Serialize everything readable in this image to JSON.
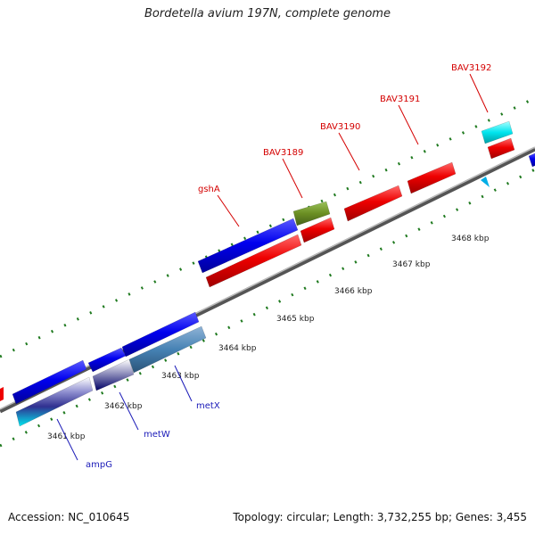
{
  "title": "Bordetella avium 197N, complete genome",
  "footer": {
    "accession": "Accession: NC_010645",
    "summary": "Topology: circular; Length: 3,732,255 bp; Genes: 3,455"
  },
  "scale_labels": [
    "3461 kbp",
    "3462 kbp",
    "3463 kbp",
    "3464 kbp",
    "3465 kbp",
    "3466 kbp",
    "3467 kbp",
    "3468 kbp"
  ],
  "gene_labels": {
    "top": [
      "gshA",
      "BAV3189",
      "BAV3190",
      "BAV3191",
      "BAV3192"
    ],
    "bottom": [
      "ampG",
      "metW",
      "metX"
    ]
  },
  "colors": {
    "forward_cds": "#0000ee",
    "reverse_cds": "#ee0000",
    "rna": "#00e5ee",
    "other": "#6b8e23",
    "label_red": "#d40000",
    "label_blue": "#1a1ab8",
    "tick": "#1f7a1f",
    "backbone": "#888888"
  }
}
